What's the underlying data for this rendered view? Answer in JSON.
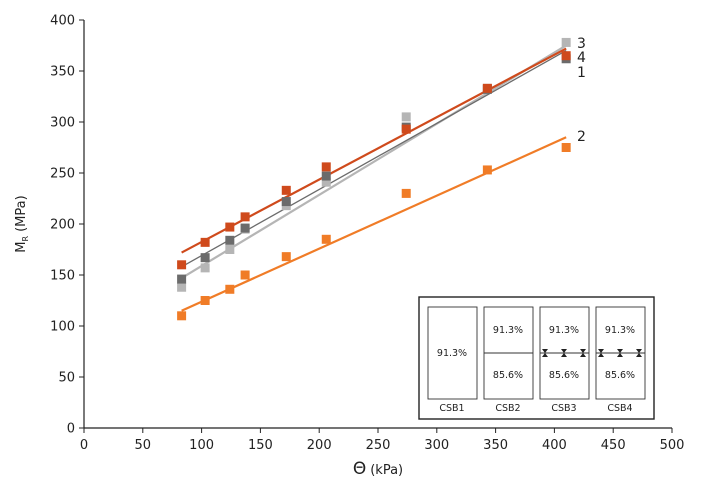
{
  "chart_data": {
    "type": "scatter",
    "xlabel_main": "Θ",
    "xlabel_unit": "(kPa)",
    "ylabel_main": "M",
    "ylabel_sub": "R",
    "ylabel_unit": "(MPa)",
    "xlim": [
      0,
      500
    ],
    "ylim": [
      0,
      400
    ],
    "xticks": [
      0,
      50,
      100,
      150,
      200,
      250,
      300,
      350,
      400,
      450,
      500
    ],
    "yticks": [
      0,
      50,
      100,
      150,
      200,
      250,
      300,
      350,
      400
    ],
    "grid": false,
    "x": [
      83,
      103,
      124,
      137,
      172,
      206,
      274,
      343,
      410
    ],
    "series": [
      {
        "name": "1",
        "color": "#6b6b6b",
        "values": [
          146,
          167,
          184,
          196,
          222,
          247,
          295,
          332,
          362
        ],
        "fit": [
          [
            83,
            158
          ],
          [
            410,
            370
          ]
        ]
      },
      {
        "name": "2",
        "color": "#f07c27",
        "values": [
          110,
          125,
          136,
          150,
          168,
          185,
          230,
          253,
          275
        ],
        "fit": [
          [
            83,
            115
          ],
          [
            410,
            285
          ]
        ]
      },
      {
        "name": "3",
        "color": "#b5b5b5",
        "values": [
          138,
          157,
          175,
          195,
          218,
          241,
          305,
          333,
          378
        ],
        "fit": [
          [
            83,
            147
          ],
          [
            410,
            375
          ]
        ]
      },
      {
        "name": "4",
        "color": "#cf4a1c",
        "values": [
          160,
          182,
          197,
          207,
          233,
          256,
          293,
          333,
          365
        ],
        "fit": [
          [
            83,
            172
          ],
          [
            410,
            372
          ]
        ]
      }
    ],
    "inset": {
      "columns": [
        {
          "name": "CSB1",
          "top": "91.3%",
          "bottom": "",
          "divider": "none"
        },
        {
          "name": "CSB2",
          "top": "91.3%",
          "bottom": "85.6%",
          "divider": "line"
        },
        {
          "name": "CSB3",
          "top": "91.3%",
          "bottom": "85.6%",
          "divider": "markers"
        },
        {
          "name": "CSB4",
          "top": "91.3%",
          "bottom": "85.6%",
          "divider": "markers"
        }
      ]
    }
  }
}
